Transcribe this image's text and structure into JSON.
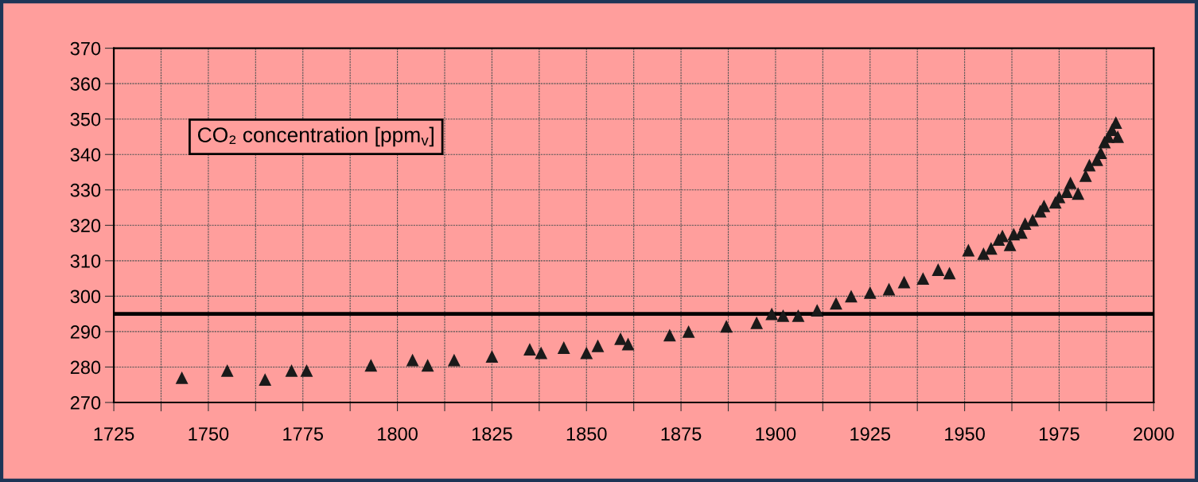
{
  "chart_data": {
    "type": "scatter",
    "annotations": [
      "CO₂ concentration [ppm$_{v}$]"
    ],
    "x": [
      1743,
      1755,
      1765,
      1772,
      1776,
      1793,
      1804,
      1808,
      1815,
      1825,
      1835,
      1838,
      1844,
      1850,
      1853,
      1859,
      1861,
      1872,
      1877,
      1887,
      1895,
      1899,
      1902,
      1906,
      1911,
      1916,
      1920,
      1925,
      1930,
      1934,
      1939,
      1943,
      1946,
      1951,
      1955,
      1957,
      1959,
      1960,
      1962,
      1963,
      1965,
      1966,
      1968,
      1970,
      1971,
      1974,
      1975,
      1977,
      1978,
      1980,
      1982,
      1983,
      1985,
      1986,
      1987,
      1988,
      1989,
      1990,
      1990.5
    ],
    "series": [
      {
        "color": "#1a1a1a",
        "values": [
          277,
          279,
          276.5,
          279,
          279,
          280.5,
          282,
          280.5,
          282,
          283,
          285,
          284,
          285.5,
          284,
          286,
          288,
          286.5,
          289,
          290,
          291.5,
          292.5,
          295,
          294.5,
          294.5,
          296,
          298,
          300,
          301,
          302,
          304,
          305,
          307.5,
          306.5,
          313,
          312,
          313.5,
          316,
          317,
          314.5,
          317.5,
          318,
          320.5,
          321.5,
          324,
          325.5,
          326.5,
          328,
          329.5,
          332,
          329,
          334,
          337,
          338.5,
          340.5,
          343.5,
          345,
          347,
          349,
          345
        ]
      }
    ],
    "marker": "triangle",
    "xlim": [
      1725,
      2000
    ],
    "xticks": [
      1725,
      {
        "value": 1737.5,
        "label": null
      },
      1750,
      {
        "value": 1762.5,
        "label": null
      },
      1775,
      {
        "value": 1787.5,
        "label": null
      },
      1800,
      {
        "value": 1812.5,
        "label": null
      },
      1825,
      {
        "value": 1837.5,
        "label": null
      },
      1850,
      {
        "value": 1862.5,
        "label": null
      },
      1875,
      {
        "value": 1887.5,
        "label": null
      },
      1900,
      {
        "value": 1912.5,
        "label": null
      },
      1925,
      {
        "value": 1937.5,
        "label": null
      },
      1950,
      {
        "value": 1962.5,
        "label": null
      },
      1975,
      {
        "value": 1987.5,
        "label": null
      },
      2000
    ],
    "ylim": [
      270,
      370
    ],
    "yticks": [
      270,
      280,
      290,
      300,
      310,
      320,
      330,
      340,
      350,
      360,
      370
    ],
    "grid": true,
    "ref_lines": [
      {
        "axis": "y",
        "value": 295,
        "color": "#000000",
        "line_style": "solid"
      }
    ]
  }
}
